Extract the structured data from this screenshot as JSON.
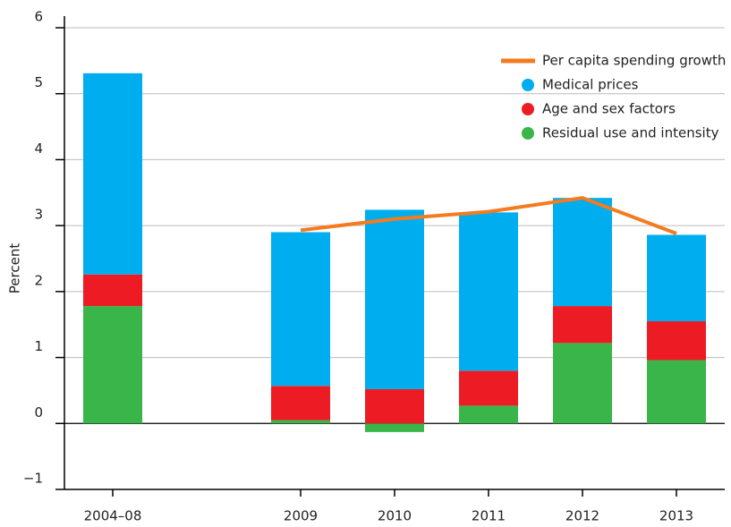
{
  "chart_data": {
    "type": "bar",
    "stacked": true,
    "y_label": "Percent",
    "categories": [
      "2004–08",
      null,
      "2009",
      "2010",
      "2011",
      "2012",
      "2013"
    ],
    "series": [
      {
        "name": "Residual use and intensity",
        "color": "#39b54a",
        "values": [
          1.78,
          null,
          0.05,
          -0.13,
          0.27,
          1.22,
          0.96
        ]
      },
      {
        "name": "Age and sex factors",
        "color": "#ed1c24",
        "values": [
          0.48,
          null,
          0.52,
          0.52,
          0.53,
          0.56,
          0.59
        ]
      },
      {
        "name": "Medical prices",
        "color": "#00aeef",
        "values": [
          3.05,
          null,
          2.33,
          2.72,
          2.4,
          1.64,
          1.31
        ]
      },
      {
        "name": "Per capita spending growth",
        "color": "#f47b20",
        "type": "line",
        "values": [
          null,
          null,
          2.93,
          3.1,
          3.21,
          3.42,
          2.88
        ]
      }
    ],
    "legend_order": [
      3,
      2,
      1,
      0
    ],
    "legend": "upper right",
    "ylim": [
      -1,
      6
    ],
    "yticks": [
      {
        "value": -1,
        "label": "−1"
      },
      0,
      1,
      2,
      3,
      4,
      5,
      6
    ],
    "grid": true
  }
}
